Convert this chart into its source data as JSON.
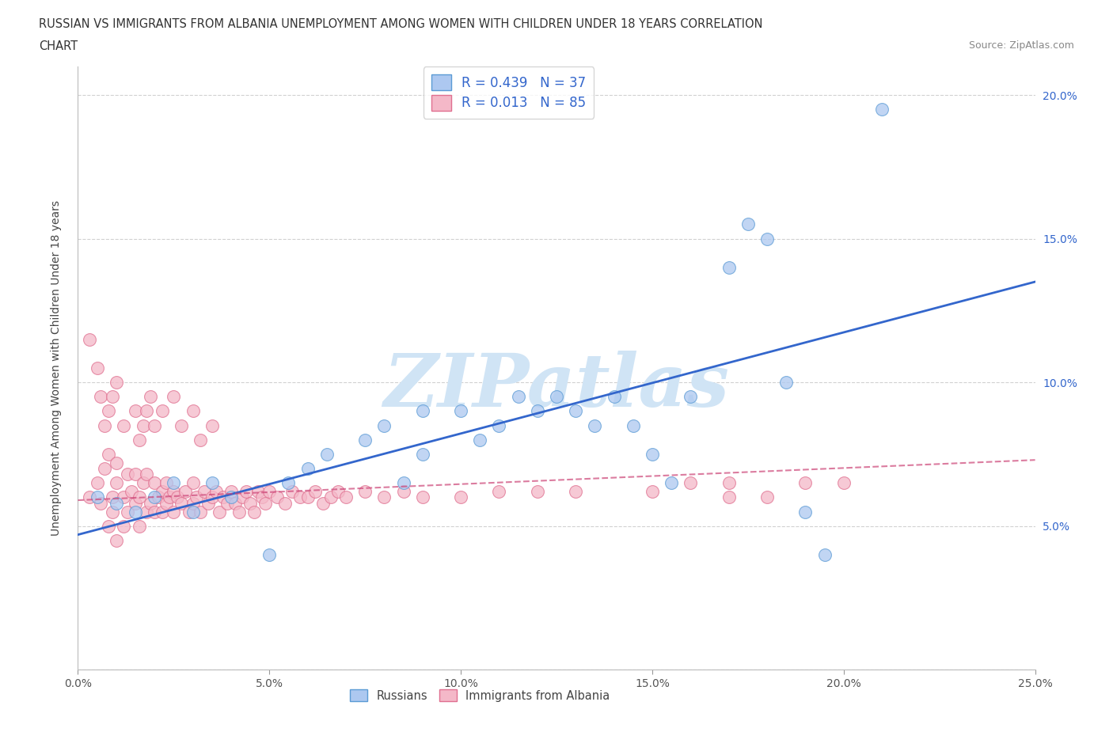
{
  "title_line1": "RUSSIAN VS IMMIGRANTS FROM ALBANIA UNEMPLOYMENT AMONG WOMEN WITH CHILDREN UNDER 18 YEARS CORRELATION",
  "title_line2": "CHART",
  "source": "Source: ZipAtlas.com",
  "ylabel": "Unemployment Among Women with Children Under 18 years",
  "xlim": [
    0.0,
    0.25
  ],
  "ylim": [
    0.0,
    0.21
  ],
  "russian_R": 0.439,
  "russian_N": 37,
  "albania_R": 0.013,
  "albania_N": 85,
  "russian_color": "#adc8f0",
  "russian_edge_color": "#5b9bd5",
  "albania_color": "#f4b8c8",
  "albania_edge_color": "#e07090",
  "russian_line_color": "#3366cc",
  "albania_line_color": "#cc4477",
  "background_color": "#ffffff",
  "grid_color": "#cccccc",
  "watermark_text": "ZIPatlas",
  "watermark_color": "#d0e4f5",
  "russians_x": [
    0.005,
    0.01,
    0.015,
    0.02,
    0.025,
    0.03,
    0.035,
    0.04,
    0.05,
    0.055,
    0.06,
    0.065,
    0.075,
    0.08,
    0.085,
    0.09,
    0.09,
    0.1,
    0.105,
    0.11,
    0.115,
    0.12,
    0.125,
    0.13,
    0.135,
    0.14,
    0.145,
    0.15,
    0.155,
    0.16,
    0.17,
    0.175,
    0.18,
    0.185,
    0.19,
    0.195,
    0.21
  ],
  "russians_y": [
    0.06,
    0.058,
    0.055,
    0.06,
    0.065,
    0.055,
    0.065,
    0.06,
    0.04,
    0.065,
    0.07,
    0.075,
    0.08,
    0.085,
    0.065,
    0.09,
    0.075,
    0.09,
    0.08,
    0.085,
    0.095,
    0.09,
    0.095,
    0.09,
    0.085,
    0.095,
    0.085,
    0.075,
    0.065,
    0.095,
    0.14,
    0.155,
    0.15,
    0.1,
    0.055,
    0.04,
    0.195
  ],
  "albania_x": [
    0.003,
    0.005,
    0.006,
    0.007,
    0.008,
    0.008,
    0.009,
    0.009,
    0.01,
    0.01,
    0.01,
    0.012,
    0.012,
    0.013,
    0.013,
    0.014,
    0.015,
    0.015,
    0.016,
    0.016,
    0.017,
    0.018,
    0.018,
    0.019,
    0.02,
    0.02,
    0.021,
    0.022,
    0.022,
    0.023,
    0.023,
    0.024,
    0.025,
    0.025,
    0.026,
    0.027,
    0.028,
    0.029,
    0.03,
    0.03,
    0.031,
    0.032,
    0.033,
    0.034,
    0.035,
    0.036,
    0.037,
    0.038,
    0.039,
    0.04,
    0.041,
    0.042,
    0.043,
    0.044,
    0.045,
    0.046,
    0.047,
    0.048,
    0.049,
    0.05,
    0.052,
    0.054,
    0.056,
    0.058,
    0.06,
    0.062,
    0.064,
    0.066,
    0.068,
    0.07,
    0.075,
    0.08,
    0.085,
    0.09,
    0.1,
    0.11,
    0.12,
    0.13,
    0.15,
    0.16,
    0.17,
    0.17,
    0.18,
    0.19,
    0.2
  ],
  "albania_y": [
    0.06,
    0.065,
    0.058,
    0.07,
    0.05,
    0.075,
    0.055,
    0.06,
    0.045,
    0.065,
    0.072,
    0.06,
    0.05,
    0.068,
    0.055,
    0.062,
    0.058,
    0.068,
    0.06,
    0.05,
    0.065,
    0.055,
    0.068,
    0.058,
    0.065,
    0.055,
    0.06,
    0.062,
    0.055,
    0.065,
    0.058,
    0.06,
    0.062,
    0.055,
    0.06,
    0.058,
    0.062,
    0.055,
    0.065,
    0.058,
    0.06,
    0.055,
    0.062,
    0.058,
    0.06,
    0.062,
    0.055,
    0.06,
    0.058,
    0.062,
    0.058,
    0.055,
    0.06,
    0.062,
    0.058,
    0.055,
    0.062,
    0.06,
    0.058,
    0.062,
    0.06,
    0.058,
    0.062,
    0.06,
    0.06,
    0.062,
    0.058,
    0.06,
    0.062,
    0.06,
    0.062,
    0.06,
    0.062,
    0.06,
    0.06,
    0.062,
    0.062,
    0.062,
    0.062,
    0.065,
    0.06,
    0.065,
    0.06,
    0.065,
    0.065
  ],
  "extra_albania_x": [
    0.003,
    0.005,
    0.006,
    0.007,
    0.008,
    0.009,
    0.01,
    0.012,
    0.015,
    0.016,
    0.017,
    0.018,
    0.019,
    0.02,
    0.022,
    0.025,
    0.027,
    0.03,
    0.032,
    0.035
  ],
  "extra_albania_y": [
    0.115,
    0.105,
    0.095,
    0.085,
    0.09,
    0.095,
    0.1,
    0.085,
    0.09,
    0.08,
    0.085,
    0.09,
    0.095,
    0.085,
    0.09,
    0.095,
    0.085,
    0.09,
    0.08,
    0.085
  ],
  "russian_line_x0": 0.0,
  "russian_line_y0": 0.047,
  "russian_line_x1": 0.25,
  "russian_line_y1": 0.135,
  "albania_line_x0": 0.0,
  "albania_line_y0": 0.059,
  "albania_line_x1": 0.25,
  "albania_line_y1": 0.073
}
